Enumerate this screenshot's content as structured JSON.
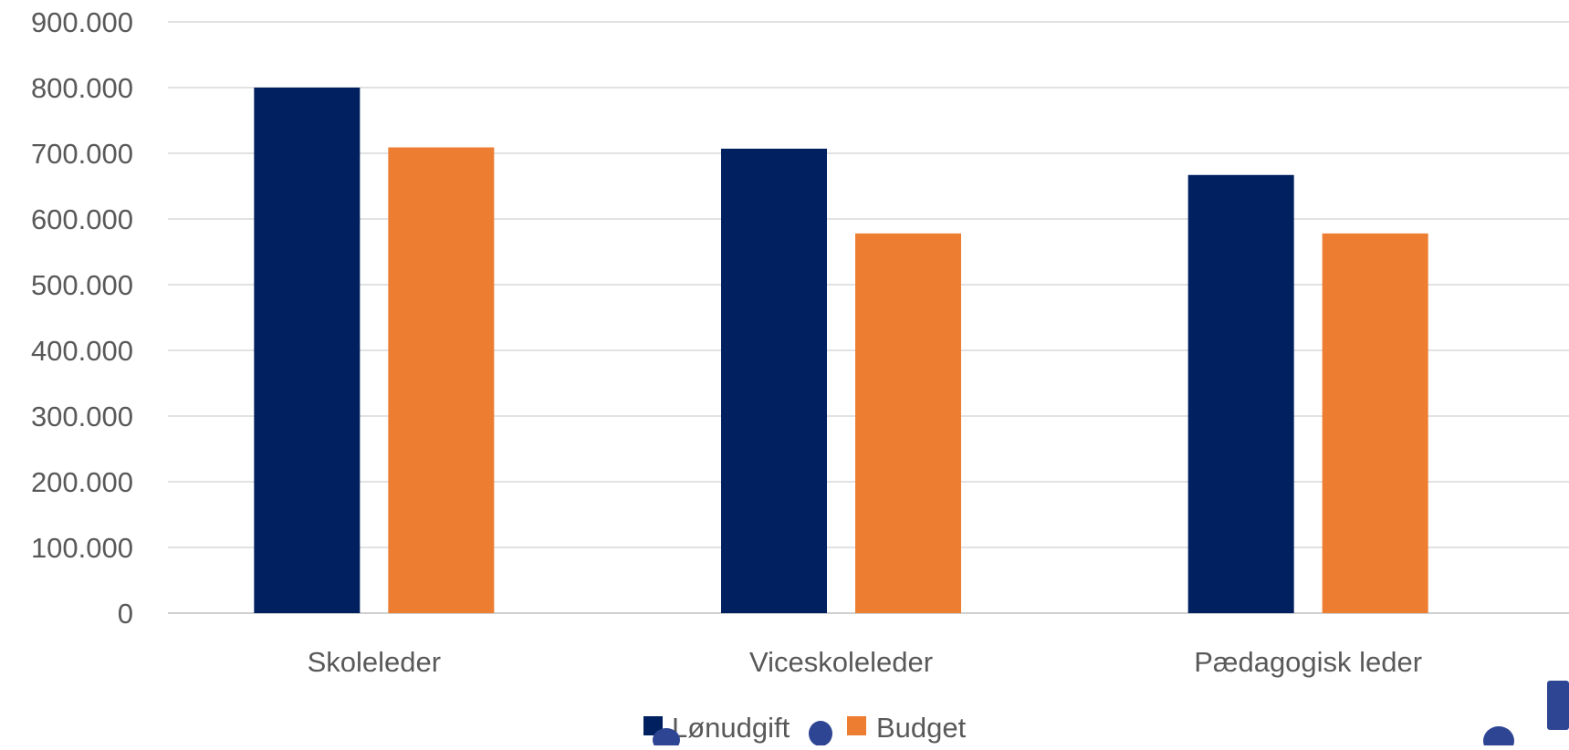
{
  "chart_data": {
    "type": "bar",
    "categories": [
      "Skoleleder",
      "Viceskoleleder",
      "Pædagogisk leder"
    ],
    "series": [
      {
        "name": "Lønudgift",
        "color": "#002060",
        "values": [
          800000,
          707000,
          667000
        ]
      },
      {
        "name": "Budget",
        "color": "#ED7D31",
        "values": [
          709000,
          578000,
          578000
        ]
      }
    ],
    "yticks": [
      "0",
      "100.000",
      "200.000",
      "300.000",
      "400.000",
      "500.000",
      "600.000",
      "700.000",
      "800.000",
      "900.000"
    ],
    "ylim": [
      0,
      900000
    ],
    "grid": true,
    "legend_position": "bottom",
    "title": "",
    "xlabel": "",
    "ylabel": ""
  },
  "decor": {
    "accent_color": "#2E4593"
  }
}
